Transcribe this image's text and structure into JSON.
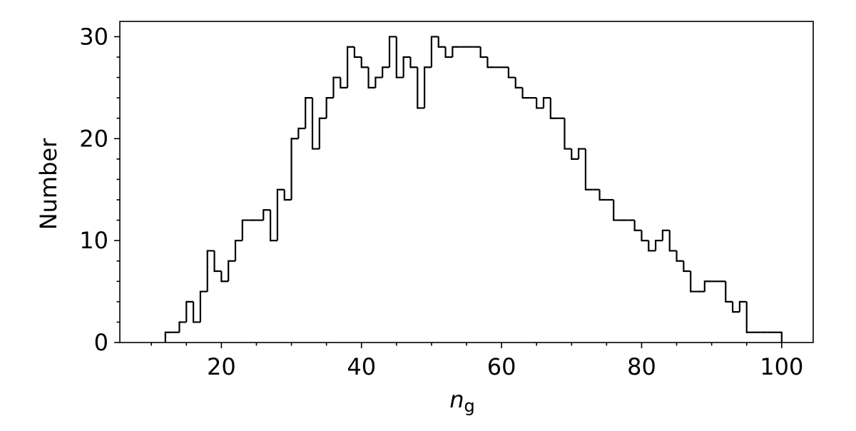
{
  "chart_data": {
    "type": "histogram",
    "xlabel": "n",
    "xlabel_sub": "g",
    "ylabel": "Number",
    "bins": [
      12,
      13,
      14,
      15,
      16,
      17,
      18,
      19,
      20,
      21,
      22,
      23,
      24,
      25,
      26,
      27,
      28,
      29,
      30,
      31,
      32,
      33,
      34,
      35,
      36,
      37,
      38,
      39,
      40,
      41,
      42,
      43,
      44,
      45,
      46,
      47,
      48,
      49,
      50,
      51,
      52,
      53,
      54,
      55,
      56,
      57,
      58,
      59,
      60,
      61,
      62,
      63,
      64,
      65,
      66,
      67,
      68,
      69,
      70,
      71,
      72,
      73,
      74,
      75,
      76,
      77,
      78,
      79,
      80,
      81,
      82,
      83,
      84,
      85,
      86,
      87,
      88,
      89,
      90,
      91,
      92,
      93,
      94,
      95,
      96,
      97,
      98,
      99,
      100
    ],
    "values": [
      1,
      1,
      2,
      4,
      2,
      5,
      9,
      7,
      6,
      8,
      10,
      12,
      12,
      12,
      13,
      10,
      15,
      14,
      20,
      21,
      24,
      19,
      22,
      24,
      26,
      25,
      29,
      28,
      27,
      25,
      26,
      27,
      30,
      26,
      28,
      27,
      23,
      27,
      30,
      29,
      28,
      29,
      29,
      29,
      29,
      28,
      27,
      27,
      27,
      26,
      25,
      24,
      24,
      23,
      24,
      22,
      22,
      19,
      18,
      19,
      15,
      15,
      14,
      14,
      12,
      12,
      12,
      11,
      10,
      9,
      10,
      11,
      9,
      8,
      7,
      5,
      5,
      6,
      6,
      6,
      4,
      3,
      4,
      1,
      1,
      1,
      1,
      1
    ],
    "color": "#000000",
    "xlim": [
      5.5,
      104.5
    ],
    "ylim": [
      0,
      31.5
    ],
    "xticks": [
      20,
      40,
      60,
      80,
      100
    ],
    "yticks": [
      0,
      10,
      20,
      30
    ],
    "xminorticks": [
      10,
      15,
      25,
      30,
      35,
      45,
      50,
      55,
      65,
      70,
      75,
      85,
      90,
      95
    ],
    "yminorticks": [
      2,
      4,
      6,
      8,
      12,
      14,
      16,
      18,
      22,
      24,
      26,
      28
    ]
  }
}
